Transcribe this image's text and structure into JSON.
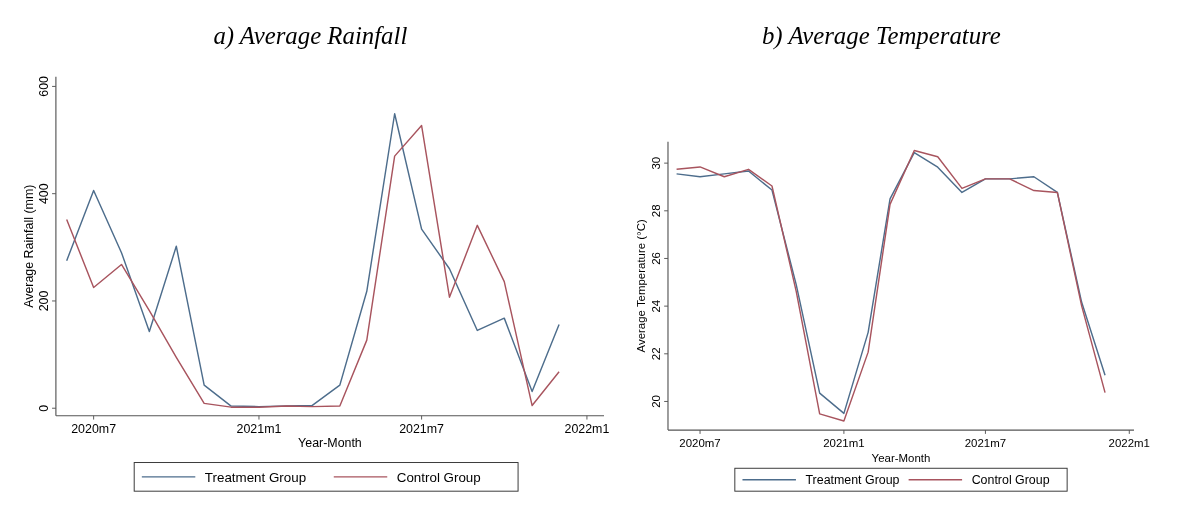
{
  "chart_data": [
    {
      "type": "line",
      "title": "a) Average Rainfall",
      "xlabel": "Year-Month",
      "ylabel": "Average Rainfall (mm)",
      "x": [
        "2020-06",
        "2020-07",
        "2020-08",
        "2020-09",
        "2020-10",
        "2020-11",
        "2020-12",
        "2021-01",
        "2021-02",
        "2021-03",
        "2021-04",
        "2021-05",
        "2021-06",
        "2021-07",
        "2021-08",
        "2021-09",
        "2021-10",
        "2021-11",
        "2021-12"
      ],
      "series": [
        {
          "name": "Treatment Group",
          "color": "#4d6d8c",
          "values": [
            275,
            406,
            290,
            143,
            302,
            43,
            4,
            3,
            4,
            5,
            43,
            218,
            549,
            334,
            260,
            145,
            168,
            31,
            156
          ]
        },
        {
          "name": "Control Group",
          "color": "#a8545e",
          "values": [
            352,
            225,
            268,
            182,
            95,
            9,
            2,
            2,
            4,
            3,
            4,
            127,
            470,
            527,
            207,
            341,
            236,
            5,
            68
          ]
        }
      ],
      "xlim": [
        "2020-05-20",
        "2022-01-20"
      ],
      "xticks": [
        {
          "value": "2020-07",
          "label": "2020m7"
        },
        {
          "value": "2021-01",
          "label": "2021m1"
        },
        {
          "value": "2021-07",
          "label": "2021m7"
        },
        {
          "value": "2022-01",
          "label": "2022m1"
        }
      ],
      "ylim": [
        -14,
        618
      ],
      "yticks": [
        0,
        200,
        400,
        600
      ],
      "grid": false,
      "legend": "bottom"
    },
    {
      "type": "line",
      "title": "b) Average Temperature",
      "xlabel": "Year-Month",
      "ylabel": "Average Temperature (°C)",
      "x": [
        "2020-06",
        "2020-07",
        "2020-08",
        "2020-09",
        "2020-10",
        "2020-11",
        "2020-12",
        "2021-01",
        "2021-02",
        "2021-03",
        "2021-04",
        "2021-05",
        "2021-06",
        "2021-07",
        "2021-08",
        "2021-09",
        "2021-10",
        "2021-11",
        "2021-12"
      ],
      "series": [
        {
          "name": "Treatment Group",
          "color": "#4d6d8c",
          "values": [
            29.55,
            29.43,
            29.55,
            29.67,
            28.87,
            24.9,
            20.35,
            19.5,
            22.9,
            28.5,
            30.44,
            29.83,
            28.77,
            29.34,
            29.34,
            29.43,
            28.77,
            24.17,
            21.1
          ]
        },
        {
          "name": "Control Group",
          "color": "#a8545e",
          "values": [
            29.74,
            29.84,
            29.43,
            29.74,
            29.04,
            24.62,
            19.48,
            19.18,
            22.07,
            28.27,
            30.53,
            30.27,
            28.94,
            29.34,
            29.34,
            28.85,
            28.77,
            24.02,
            20.37
          ]
        }
      ],
      "xlim": [
        "2020-05-21",
        "2022-01-07"
      ],
      "xticks": [
        {
          "value": "2020-07",
          "label": "2020m7"
        },
        {
          "value": "2021-01",
          "label": "2021m1"
        },
        {
          "value": "2021-07",
          "label": "2021m7"
        },
        {
          "value": "2022-01",
          "label": "2022m1"
        }
      ],
      "ylim": [
        18.8,
        30.9
      ],
      "yticks": [
        20,
        22,
        24,
        26,
        28,
        30
      ],
      "grid": false,
      "legend": "bottom"
    }
  ]
}
